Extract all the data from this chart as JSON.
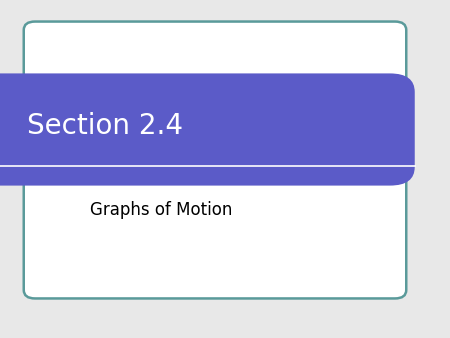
{
  "background_color": "#e8e8e8",
  "slide_bg": "#ffffff",
  "title_text": "Section 2.4",
  "title_color": "#ffffff",
  "title_bg": "#5b5bc8",
  "subtitle_text": "Graphs of Motion",
  "subtitle_color": "#000000",
  "box_border_color": "#5a9a9a",
  "separator_color": "#ffffff",
  "title_fontsize": 20,
  "subtitle_fontsize": 12,
  "fig_width": 4.5,
  "fig_height": 3.38,
  "dpi": 100
}
